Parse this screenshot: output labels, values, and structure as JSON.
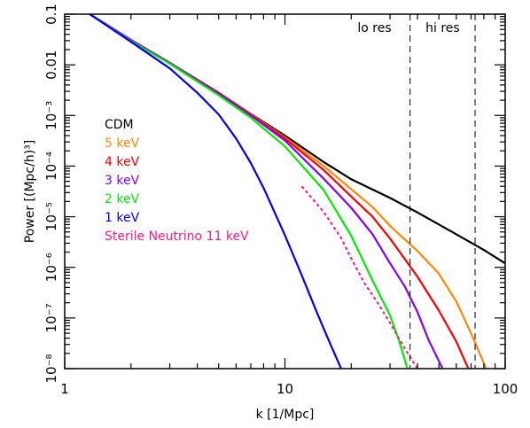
{
  "chart_data": {
    "type": "line",
    "title": "",
    "xlabel": "k [1/Mpc]",
    "ylabel": "Power [(Mpc/h)³]",
    "x_scale": "log",
    "y_scale": "log",
    "xlim": [
      1,
      100
    ],
    "ylim": [
      1e-08,
      0.1
    ],
    "x_ticks": [
      {
        "value": 1,
        "label": "1"
      },
      {
        "value": 10,
        "label": "10"
      },
      {
        "value": 100,
        "label": "100"
      }
    ],
    "y_ticks": [
      {
        "value": 0.1,
        "label": "0.1"
      },
      {
        "value": 0.01,
        "label": "0.01"
      },
      {
        "value": 0.001,
        "label": "10⁻³"
      },
      {
        "value": 0.0001,
        "label": "10⁻⁴"
      },
      {
        "value": 1e-05,
        "label": "10⁻⁵"
      },
      {
        "value": 1e-06,
        "label": "10⁻⁶"
      },
      {
        "value": 1e-07,
        "label": "10⁻⁷"
      },
      {
        "value": 1e-08,
        "label": "10⁻⁸"
      }
    ],
    "grid": false,
    "legend_position": "left",
    "annotations": [
      {
        "text": "lo res",
        "x": 25.5,
        "y": 0.045
      },
      {
        "text": "hi res",
        "x": 52,
        "y": 0.045
      }
    ],
    "vlines": [
      {
        "x": 37,
        "style": "dashed",
        "color": "#000000"
      },
      {
        "x": 73,
        "style": "dashed",
        "color": "#000000"
      }
    ],
    "series": [
      {
        "name": "CDM",
        "color": "#000000",
        "style": "solid",
        "points": [
          [
            1,
            0.3
          ],
          [
            1.3,
            0.1
          ],
          [
            2,
            0.031
          ],
          [
            3,
            0.0109
          ],
          [
            5,
            0.0028
          ],
          [
            7,
            0.00107
          ],
          [
            10,
            0.0004
          ],
          [
            15,
            0.00012
          ],
          [
            20,
            5.5e-05
          ],
          [
            30,
            2.35e-05
          ],
          [
            40,
            1.21e-05
          ],
          [
            60,
            4.5e-06
          ],
          [
            80,
            2.2e-06
          ],
          [
            100,
            1.2e-06
          ]
        ]
      },
      {
        "name": "5 keV",
        "color": "#ff8800",
        "style": "solid",
        "points": [
          [
            1,
            0.3
          ],
          [
            1.3,
            0.1
          ],
          [
            2,
            0.031
          ],
          [
            3,
            0.0109
          ],
          [
            5,
            0.0028
          ],
          [
            7,
            0.00106
          ],
          [
            10,
            0.00037
          ],
          [
            15,
            0.0001
          ],
          [
            20,
            3.5e-05
          ],
          [
            25,
            1.55e-05
          ],
          [
            30,
            6.6e-06
          ],
          [
            40,
            2.1e-06
          ],
          [
            50,
            7.5e-07
          ],
          [
            60,
            2.1e-07
          ],
          [
            70,
            5e-08
          ],
          [
            82,
            1e-08
          ]
        ]
      },
      {
        "name": "4 keV",
        "color": "#ff0000",
        "style": "solid",
        "points": [
          [
            1,
            0.3
          ],
          [
            1.3,
            0.1
          ],
          [
            2,
            0.031
          ],
          [
            3,
            0.0109
          ],
          [
            5,
            0.0028
          ],
          [
            7,
            0.00104
          ],
          [
            10,
            0.00035
          ],
          [
            15,
            8.35e-05
          ],
          [
            20,
            2.5e-05
          ],
          [
            25,
            1e-05
          ],
          [
            30,
            3.7e-06
          ],
          [
            40,
            6.5e-07
          ],
          [
            50,
            1.4e-07
          ],
          [
            60,
            3.4e-08
          ],
          [
            68,
            1e-08
          ]
        ]
      },
      {
        "name": "3 keV",
        "color": "#8800ee",
        "style": "solid",
        "points": [
          [
            1,
            0.3
          ],
          [
            1.3,
            0.1
          ],
          [
            2,
            0.031
          ],
          [
            3,
            0.0109
          ],
          [
            5,
            0.0027
          ],
          [
            7,
            0.001
          ],
          [
            10,
            0.00032
          ],
          [
            15,
            5.62e-05
          ],
          [
            20,
            1.5e-05
          ],
          [
            25,
            4.5e-06
          ],
          [
            30,
            1.2e-06
          ],
          [
            35,
            4.2e-07
          ],
          [
            40,
            1.3e-07
          ],
          [
            45,
            3.6e-08
          ],
          [
            52,
            1e-08
          ]
        ]
      },
      {
        "name": "2 keV",
        "color": "#00ee00",
        "style": "solid",
        "points": [
          [
            1,
            0.3
          ],
          [
            1.3,
            0.1
          ],
          [
            2,
            0.0295
          ],
          [
            3,
            0.0105
          ],
          [
            5,
            0.0025
          ],
          [
            7,
            0.0009
          ],
          [
            10,
            0.000245
          ],
          [
            15,
            3.34e-05
          ],
          [
            20,
            4.2e-06
          ],
          [
            25,
            5.5e-07
          ],
          [
            30,
            1.12e-07
          ],
          [
            33,
            3.5e-08
          ],
          [
            36,
            1e-08
          ]
        ]
      },
      {
        "name": "1 keV",
        "color": "#0000ee",
        "style": "solid",
        "points": [
          [
            1,
            0.3
          ],
          [
            1.3,
            0.1
          ],
          [
            2,
            0.0285
          ],
          [
            3,
            0.0085
          ],
          [
            4,
            0.0028
          ],
          [
            5,
            0.00105
          ],
          [
            6,
            0.00035
          ],
          [
            7,
            0.000115
          ],
          [
            8,
            3.7e-05
          ],
          [
            10,
            4.3e-06
          ],
          [
            12,
            6.5e-07
          ],
          [
            14,
            1.25e-07
          ],
          [
            16,
            3.2e-08
          ],
          [
            18,
            1e-08
          ]
        ]
      },
      {
        "name": "Sterile Neutrino 11 keV",
        "color": "#ff1a8c",
        "style": "dotted",
        "points": [
          [
            12,
            3.85e-05
          ],
          [
            15,
            1.24e-05
          ],
          [
            18,
            3.8e-06
          ],
          [
            20,
            1.5e-06
          ],
          [
            23,
            4.8e-07
          ],
          [
            26,
            2.2e-07
          ],
          [
            30,
            8e-08
          ],
          [
            35,
            2.5e-08
          ],
          [
            40,
            1e-08
          ]
        ]
      }
    ]
  }
}
